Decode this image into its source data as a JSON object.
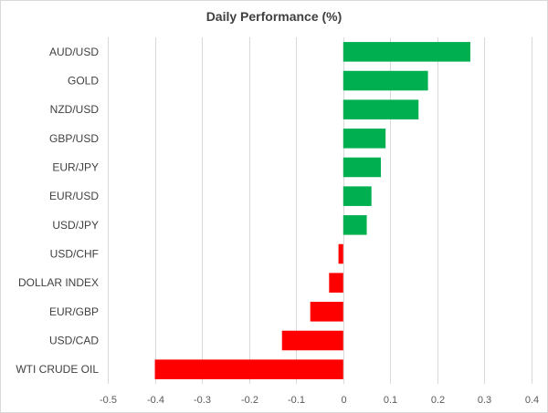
{
  "chart_data": {
    "type": "bar",
    "orientation": "horizontal",
    "title": "Daily Performance (%)",
    "xlabel": "",
    "ylabel": "",
    "categories": [
      "AUD/USD",
      "GOLD",
      "NZD/USD",
      "GBP/USD",
      "EUR/JPY",
      "EUR/USD",
      "USD/JPY",
      "USD/CHF",
      "DOLLAR INDEX",
      "EUR/GBP",
      "USD/CAD",
      "WTI CRUDE OIL"
    ],
    "values": [
      0.27,
      0.18,
      0.16,
      0.09,
      0.08,
      0.06,
      0.05,
      -0.01,
      -0.03,
      -0.07,
      -0.13,
      -0.4
    ],
    "xlim": [
      -0.5,
      0.4
    ],
    "x_ticks": [
      -0.5,
      -0.4,
      -0.3,
      -0.2,
      -0.1,
      0,
      0.1,
      0.2,
      0.3,
      0.4
    ],
    "x_tick_labels": [
      "-0.5",
      "-0.4",
      "-0.3",
      "-0.2",
      "-0.1",
      "0",
      "0.1",
      "0.2",
      "0.3",
      "0.4"
    ],
    "grid": "vertical",
    "legend": "none",
    "colors": {
      "positive": "#00b050",
      "negative": "#ff0000",
      "grid": "#d9d9d9"
    }
  }
}
